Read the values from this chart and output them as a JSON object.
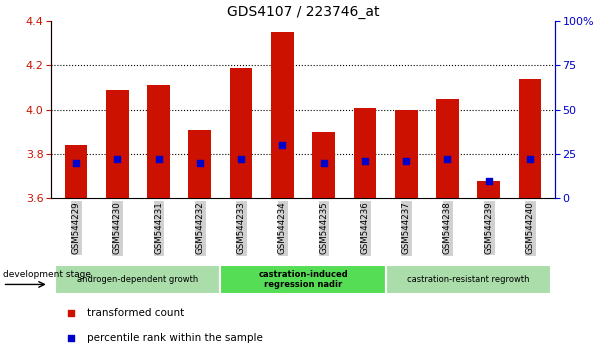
{
  "title": "GDS4107 / 223746_at",
  "samples": [
    "GSM544229",
    "GSM544230",
    "GSM544231",
    "GSM544232",
    "GSM544233",
    "GSM544234",
    "GSM544235",
    "GSM544236",
    "GSM544237",
    "GSM544238",
    "GSM544239",
    "GSM544240"
  ],
  "bar_values": [
    3.84,
    4.09,
    4.11,
    3.91,
    4.19,
    4.35,
    3.9,
    4.01,
    4.0,
    4.05,
    3.68,
    4.14
  ],
  "percentile_values": [
    20,
    22,
    22,
    20,
    22,
    30,
    20,
    21,
    21,
    22,
    10,
    22
  ],
  "y_min": 3.6,
  "y_max": 4.4,
  "y_ticks": [
    3.6,
    3.8,
    4.0,
    4.2,
    4.4
  ],
  "right_y_ticks": [
    0,
    25,
    50,
    75,
    100
  ],
  "right_y_labels": [
    "0",
    "25",
    "50",
    "75",
    "100%"
  ],
  "bar_color": "#cc1100",
  "dot_color": "#0000cc",
  "bar_width": 0.55,
  "grid_color": "#000000",
  "groups": [
    {
      "label": "androgen-dependent growth",
      "start": 0,
      "end": 3,
      "color": "#aaddaa",
      "bold": false
    },
    {
      "label": "castration-induced\nregression nadir",
      "start": 4,
      "end": 7,
      "color": "#55dd55",
      "bold": true
    },
    {
      "label": "castration-resistant regrowth",
      "start": 8,
      "end": 11,
      "color": "#aaddaa",
      "bold": false
    }
  ],
  "dev_stage_label": "development stage",
  "legend_items": [
    {
      "label": "transformed count",
      "color": "#cc1100"
    },
    {
      "label": "percentile rank within the sample",
      "color": "#0000cc"
    }
  ],
  "tick_color_left": "#cc1100",
  "tick_color_right": "#0000cc",
  "bg_color_xticklabels": "#cccccc"
}
